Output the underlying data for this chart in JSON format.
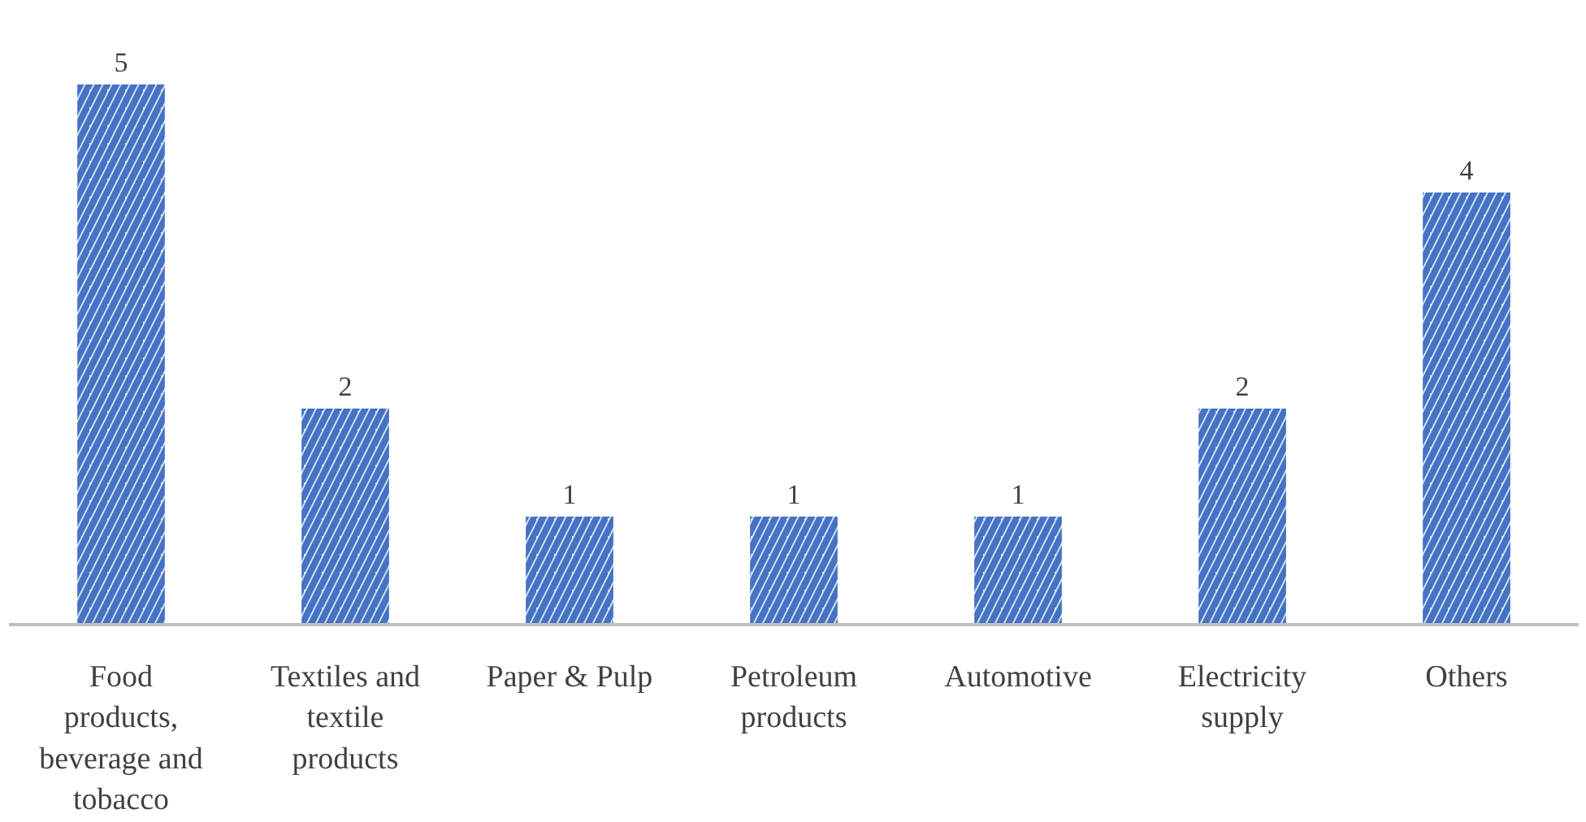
{
  "chart_data": {
    "type": "bar",
    "categories": [
      "Food products, beverage and tobacco",
      "Textiles and textile products",
      "Paper & Pulp",
      "Petroleum products",
      "Automotive",
      "Electricity supply",
      "Others"
    ],
    "values": [
      5,
      2,
      1,
      1,
      1,
      2,
      4
    ],
    "color": "#4472c4",
    "data_labels": true,
    "grid": false
  }
}
